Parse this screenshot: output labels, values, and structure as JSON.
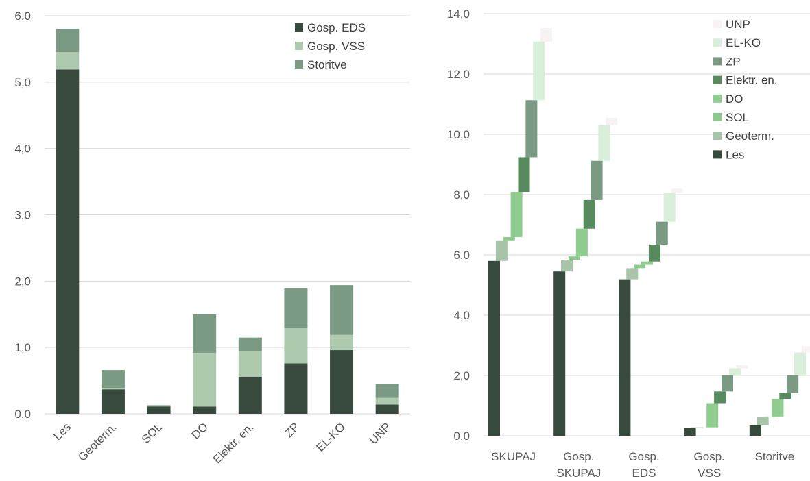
{
  "chart_data": [
    {
      "type": "bar",
      "stacked": true,
      "categories": [
        "Les",
        "Geoterm.",
        "SOL",
        "DO",
        "Elektr. en.",
        "ZP",
        "EL-KO",
        "UNP"
      ],
      "series": [
        {
          "name": "Gosp. EDS",
          "color": "#374a3d",
          "values": [
            5.19,
            0.37,
            0.11,
            0.11,
            0.56,
            0.76,
            0.96,
            0.14
          ]
        },
        {
          "name": "Gosp. VSS",
          "color": "#adc9ae",
          "values": [
            0.26,
            0.02,
            0.0,
            0.81,
            0.39,
            0.54,
            0.23,
            0.1
          ]
        },
        {
          "name": "Storitve",
          "color": "#7a9a84",
          "values": [
            0.35,
            0.27,
            0.02,
            0.58,
            0.2,
            0.59,
            0.75,
            0.21
          ]
        }
      ],
      "ylim": [
        0,
        6
      ],
      "yticks": [
        "0,0",
        "1,0",
        "2,0",
        "3,0",
        "4,0",
        "5,0",
        "6,0"
      ],
      "grid": true,
      "legend": "top-right"
    },
    {
      "type": "bar",
      "subtype": "waterfall",
      "categories": [
        "SKUPAJ",
        "Gosp. SKUPAJ",
        "Gosp. EDS",
        "Gosp. VSS",
        "Storitve"
      ],
      "category_lines": [
        [
          "SKUPAJ"
        ],
        [
          "Gosp.",
          "SKUPAJ"
        ],
        [
          "Gosp.",
          "EDS"
        ],
        [
          "Gosp.",
          "VSS"
        ],
        [
          "Storitve"
        ]
      ],
      "series": [
        {
          "name": "Les",
          "color": "#374a3d",
          "values": [
            5.8,
            5.45,
            5.19,
            0.26,
            0.35
          ]
        },
        {
          "name": "Geoterm.",
          "color": "#a8c4a9",
          "values": [
            0.66,
            0.39,
            0.37,
            0.02,
            0.27
          ]
        },
        {
          "name": "SOL",
          "color": "#8cc98c",
          "values": [
            0.13,
            0.11,
            0.11,
            0.0,
            0.02
          ]
        },
        {
          "name": "DO",
          "color": "#8fcc8f",
          "values": [
            1.5,
            0.92,
            0.11,
            0.8,
            0.58
          ]
        },
        {
          "name": "Elektr. en.",
          "color": "#578a5c",
          "values": [
            1.15,
            0.95,
            0.56,
            0.39,
            0.2
          ]
        },
        {
          "name": "ZP",
          "color": "#7a9a84",
          "values": [
            1.89,
            1.3,
            0.76,
            0.54,
            0.59
          ]
        },
        {
          "name": "EL-KO",
          "color": "#d9eedb",
          "values": [
            1.94,
            1.19,
            0.96,
            0.23,
            0.75
          ]
        },
        {
          "name": "UNP",
          "color": "#f8f2f2",
          "values": [
            0.45,
            0.24,
            0.14,
            0.1,
            0.21
          ]
        }
      ],
      "legend_order": [
        "UNP",
        "EL-KO",
        "ZP",
        "Elektr. en.",
        "DO",
        "SOL",
        "Geoterm.",
        "Les"
      ],
      "ylim": [
        0,
        14
      ],
      "yticks": [
        "0,0",
        "2,0",
        "4,0",
        "6,0",
        "8,0",
        "10,0",
        "12,0",
        "14,0"
      ],
      "grid": true,
      "legend": "top-right"
    }
  ]
}
